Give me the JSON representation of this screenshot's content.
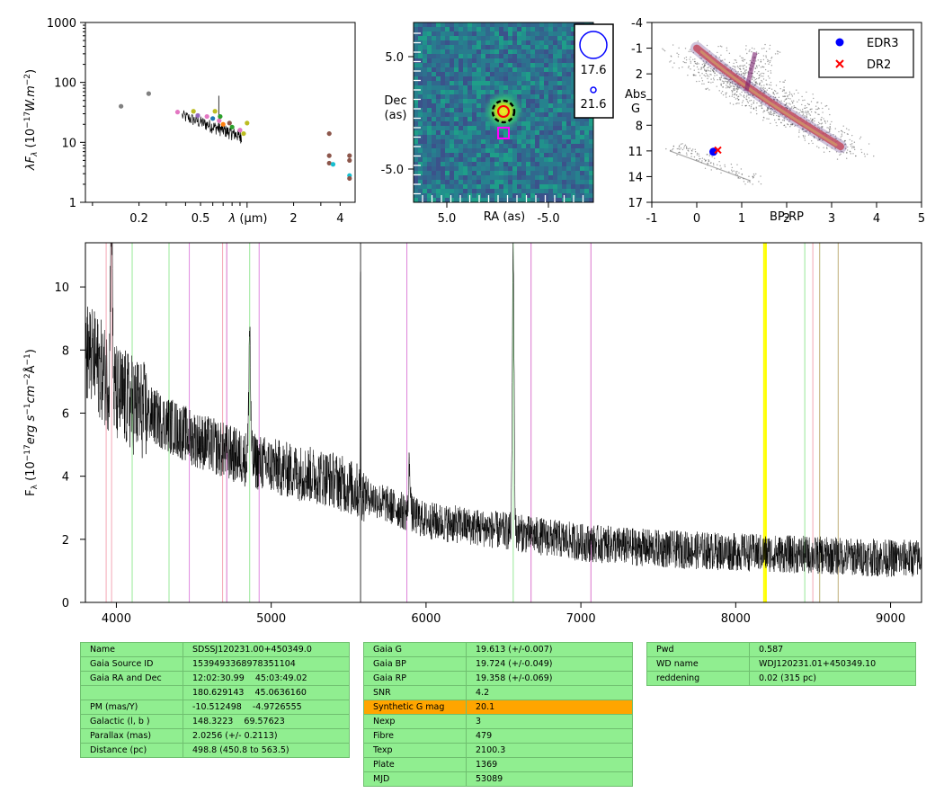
{
  "sed": {
    "ylabel": "λF$_λ$ (10$^{-17}$W.m$^{-2}$)",
    "xlabel": "λ (μm)",
    "y_ticks": [
      "1",
      "10",
      "100",
      "1000"
    ],
    "x_ticks": [
      "0.2",
      "0.5",
      "2",
      "4"
    ],
    "ylim": [
      1,
      1000
    ],
    "xlim": [
      0.09,
      5.0
    ],
    "scale": "log-log",
    "points": [
      {
        "x": 0.153,
        "y": 40,
        "c": "#808080"
      },
      {
        "x": 0.231,
        "y": 65,
        "c": "#808080"
      },
      {
        "x": 0.355,
        "y": 32,
        "c": "#e377c2"
      },
      {
        "x": 0.45,
        "y": 33,
        "c": "#bcbd22"
      },
      {
        "x": 0.48,
        "y": 28,
        "c": "#9467bd"
      },
      {
        "x": 0.55,
        "y": 27,
        "c": "#e377c2"
      },
      {
        "x": 0.6,
        "y": 25,
        "c": "#1f77b4"
      },
      {
        "x": 0.62,
        "y": 33,
        "c": "#bcbd22"
      },
      {
        "x": 0.66,
        "y": 23,
        "c": "#e377c2"
      },
      {
        "x": 0.67,
        "y": 27,
        "c": "#2ca02c"
      },
      {
        "x": 0.7,
        "y": 20,
        "c": "#ff7f0e"
      },
      {
        "x": 0.77,
        "y": 21,
        "c": "#8c564b"
      },
      {
        "x": 0.8,
        "y": 18,
        "c": "#2ca02c"
      },
      {
        "x": 0.9,
        "y": 16,
        "c": "#e377c2"
      },
      {
        "x": 0.95,
        "y": 14,
        "c": "#bcbd22"
      },
      {
        "x": 1.0,
        "y": 21,
        "c": "#bcbd22"
      },
      {
        "x": 3.4,
        "y": 14,
        "c": "#8c564b"
      },
      {
        "x": 3.4,
        "y": 6,
        "c": "#8c564b"
      },
      {
        "x": 3.4,
        "y": 4.5,
        "c": "#8c564b"
      },
      {
        "x": 3.6,
        "y": 4.3,
        "c": "#17becf"
      },
      {
        "x": 4.6,
        "y": 6,
        "c": "#8c564b"
      },
      {
        "x": 4.6,
        "y": 5,
        "c": "#8c564b"
      },
      {
        "x": 4.6,
        "y": 2.8,
        "c": "#17becf"
      },
      {
        "x": 4.6,
        "y": 2.5,
        "c": "#8c564b"
      }
    ]
  },
  "img": {
    "ylabel_1": "Dec",
    "ylabel_2": "(as)",
    "xlabel": "RA (as)",
    "x_ticks": [
      "5.0",
      "-5.0"
    ],
    "y_ticks": [
      "5.0",
      "-5.0"
    ],
    "legend": [
      "17.6",
      "21.6"
    ]
  },
  "hrd": {
    "xlabel": "BP-RP",
    "ylabel_1": "Abs",
    "ylabel_2": "G",
    "x_ticks": [
      "-1",
      "0",
      "1",
      "2",
      "3",
      "4",
      "5"
    ],
    "y_ticks": [
      "-4",
      "-1",
      "2",
      "5",
      "8",
      "11",
      "14",
      "17"
    ],
    "xlim": [
      -1,
      5
    ],
    "ylim": [
      -4,
      17
    ],
    "legend": [
      "EDR3",
      "DR2"
    ],
    "edr3": {
      "x": 0.37,
      "y": 11.1
    },
    "dr2": {
      "x": 0.47,
      "y": 10.9
    }
  },
  "chart_data": {
    "type": "line",
    "ylabel": "F$_λ$ (10$^{-17}$erg s$^{-1}$cm$^{-2}$Å$^{-1}$)",
    "x_ticks": [
      "4000",
      "5000",
      "6000",
      "7000",
      "8000",
      "9000"
    ],
    "y_ticks": [
      "0",
      "2",
      "4",
      "6",
      "8",
      "10"
    ],
    "xlim": [
      3800,
      9200
    ],
    "ylim": [
      0,
      11.4
    ],
    "continuum": [
      [
        3800,
        8.0
      ],
      [
        3900,
        7.4
      ],
      [
        4000,
        6.6
      ],
      [
        4200,
        6.0
      ],
      [
        4500,
        5.2
      ],
      [
        4800,
        4.6
      ],
      [
        5100,
        4.2
      ],
      [
        5400,
        3.9
      ],
      [
        5700,
        3.2
      ],
      [
        6000,
        2.6
      ],
      [
        6300,
        2.4
      ],
      [
        6600,
        2.2
      ],
      [
        7000,
        1.9
      ],
      [
        7500,
        1.7
      ],
      [
        8000,
        1.6
      ],
      [
        8500,
        1.5
      ],
      [
        9000,
        1.4
      ],
      [
        9200,
        1.4
      ]
    ],
    "emission": [
      {
        "x": 3968,
        "h": 6.5
      },
      {
        "x": 4861,
        "h": 4.2
      },
      {
        "x": 5577,
        "h": 8.0
      },
      {
        "x": 5893,
        "h": 1.6
      },
      {
        "x": 6563,
        "h": 9.0
      }
    ],
    "lines_pink": [
      3934,
      3969,
      4686,
      4713,
      5876,
      6678,
      7065,
      8498
    ],
    "lines_green": [
      4102,
      4340,
      4861,
      6563,
      8446,
      8542,
      8662
    ],
    "lines_violet": [
      4471,
      4922
    ],
    "lines_yellow": [
      8183,
      8195
    ],
    "lines_tan": [
      8542,
      8662
    ]
  },
  "table1": [
    [
      "Name",
      "SDSSJ120231.00+450349.0"
    ],
    [
      "Gaia Source ID",
      "1539493368978351104"
    ],
    [
      "Gaia RA and Dec",
      "12:02:30.99    45:03:49.02"
    ],
    [
      "",
      "180.629143    45.0636160"
    ],
    [
      "PM (mas/Y)",
      "-10.512498    -4.9726555"
    ],
    [
      "Galactic (l, b )",
      "148.3223    69.57623"
    ],
    [
      "Parallax (mas)",
      "2.0256 (+/- 0.2113)"
    ],
    [
      "Distance (pc)",
      "498.8 (450.8 to 563.5)"
    ]
  ],
  "table2": [
    [
      "Gaia G",
      "19.613 (+/-0.007)"
    ],
    [
      "Gaia BP",
      "19.724 (+/-0.049)"
    ],
    [
      "Gaia RP",
      "19.358 (+/-0.069)"
    ],
    [
      "SNR",
      "4.2"
    ],
    [
      "Synthetic G mag",
      "20.1"
    ],
    [
      "Nexp",
      "3"
    ],
    [
      "Fibre",
      "479"
    ],
    [
      "Texp",
      "2100.3"
    ],
    [
      "Plate",
      "1369"
    ],
    [
      "MJD",
      "53089"
    ]
  ],
  "table3": [
    [
      "Pwd",
      "0.587"
    ],
    [
      "WD name",
      "WDJ120231.01+450349.10"
    ],
    [
      "reddening",
      "0.02 (315 pc)"
    ]
  ],
  "colors": {
    "highlight": "#ffa500",
    "cell": "#90ee90",
    "edr3": "#0000ff",
    "dr2": "#ff0000"
  }
}
